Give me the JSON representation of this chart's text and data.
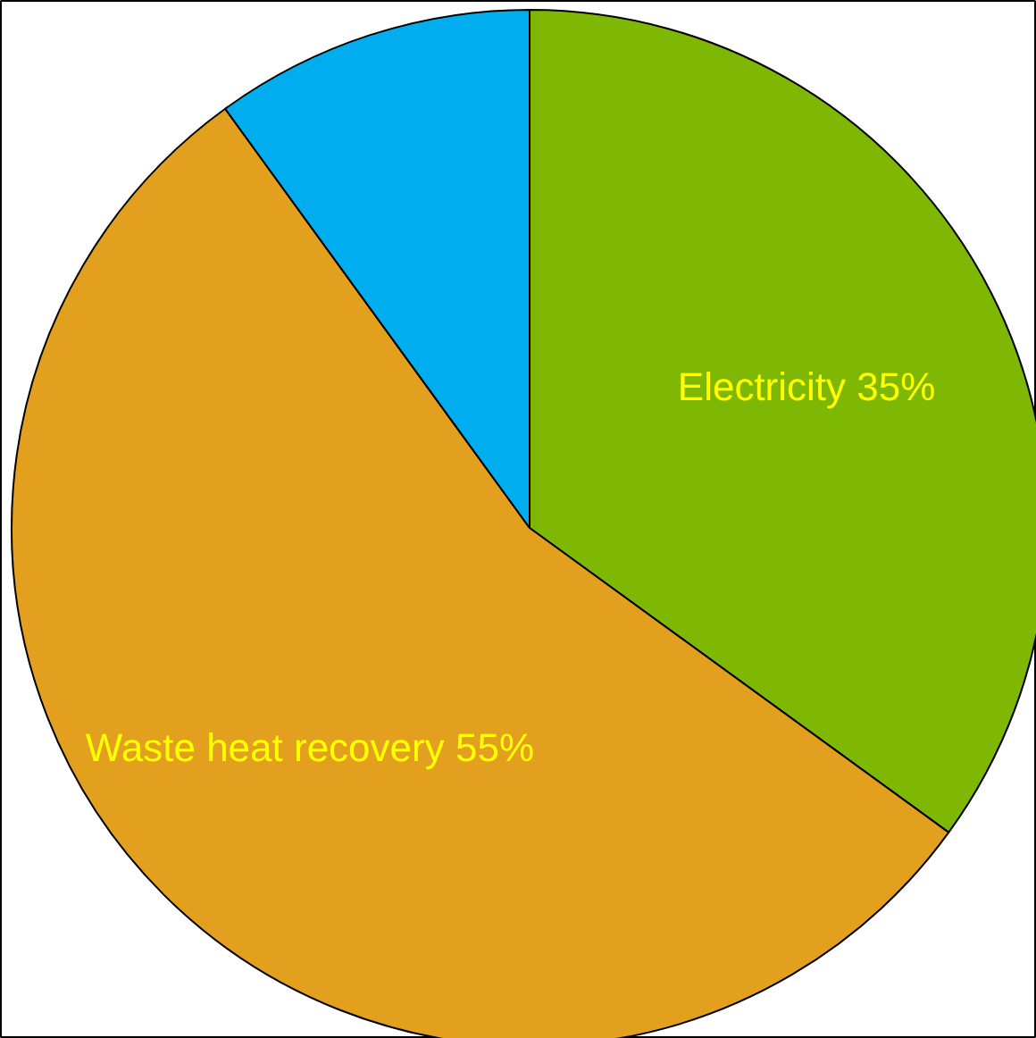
{
  "chart_data": {
    "type": "pie",
    "categories": [
      "Electricity",
      "Waste heat recovery",
      null
    ],
    "values": [
      35,
      55,
      10
    ],
    "value_labels": [
      "35%",
      "55%",
      null
    ],
    "colors": [
      "#7fb705",
      "#e2a01e",
      "#00aeef"
    ]
  }
}
